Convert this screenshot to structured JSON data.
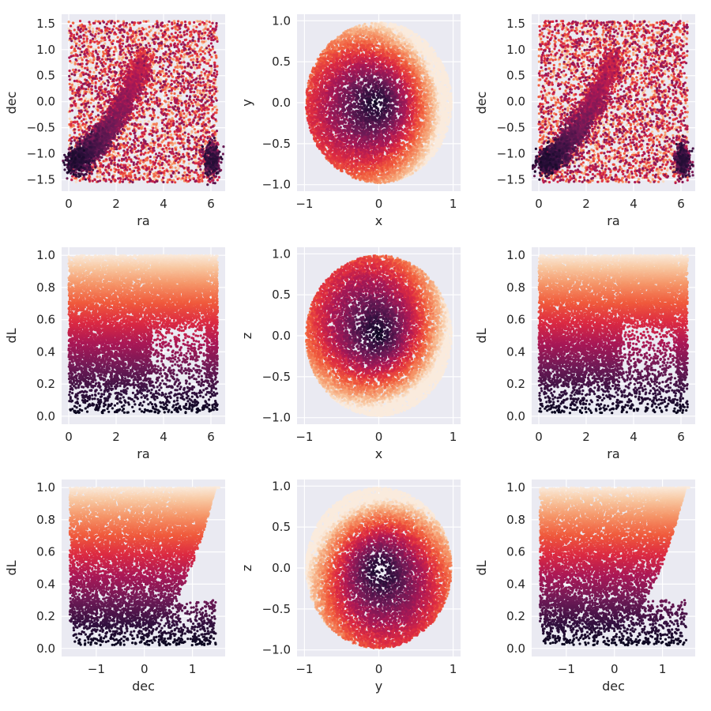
{
  "figure": {
    "grid": true,
    "facecolor": "#eaeaf2",
    "gridcolor": "#ffffff"
  },
  "chart_data": [
    {
      "id": "p00",
      "type": "scatter",
      "xlabel": "ra",
      "ylabel": "dec",
      "xlim": [
        -0.3,
        6.6
      ],
      "ylim": [
        -1.72,
        1.68
      ],
      "xticks": [
        "0",
        "2",
        "4",
        "6"
      ],
      "yticks": [
        "−1.5",
        "−1.0",
        "−0.5",
        "0.0",
        "0.5",
        "1.0",
        "1.5"
      ],
      "xtick_values": [
        0,
        2,
        4,
        6
      ],
      "ytick_values": [
        -1.5,
        -1.0,
        -0.5,
        0.0,
        0.5,
        1.0,
        1.5
      ],
      "style": "radec",
      "colormap": "rocket"
    },
    {
      "id": "p01",
      "type": "scatter",
      "xlabel": "x",
      "ylabel": "y",
      "xlim": [
        -1.1,
        1.1
      ],
      "ylim": [
        -1.08,
        1.08
      ],
      "xticks": [
        "−1",
        "0",
        "1"
      ],
      "yticks": [
        "−1.0",
        "−0.5",
        "0.0",
        "0.5",
        "1.0"
      ],
      "xtick_values": [
        -1,
        0,
        1
      ],
      "ytick_values": [
        -1.0,
        -0.5,
        0.0,
        0.5,
        1.0
      ],
      "style": "disk_xy",
      "colormap": "rocket"
    },
    {
      "id": "p02",
      "type": "scatter",
      "xlabel": "ra",
      "ylabel": "dec",
      "xlim": [
        -0.3,
        6.6
      ],
      "ylim": [
        -1.72,
        1.68
      ],
      "xticks": [
        "0",
        "2",
        "4",
        "6"
      ],
      "yticks": [
        "−1.5",
        "−1.0",
        "−0.5",
        "0.0",
        "0.5",
        "1.0",
        "1.5"
      ],
      "xtick_values": [
        0,
        2,
        4,
        6
      ],
      "ytick_values": [
        -1.5,
        -1.0,
        -0.5,
        0.0,
        0.5,
        1.0,
        1.5
      ],
      "style": "radec",
      "colormap": "rocket"
    },
    {
      "id": "p10",
      "type": "scatter",
      "xlabel": "ra",
      "ylabel": "dL",
      "xlim": [
        -0.3,
        6.6
      ],
      "ylim": [
        -0.05,
        1.05
      ],
      "xticks": [
        "0",
        "2",
        "4",
        "6"
      ],
      "yticks": [
        "0.0",
        "0.2",
        "0.4",
        "0.6",
        "0.8",
        "1.0"
      ],
      "xtick_values": [
        0,
        2,
        4,
        6
      ],
      "ytick_values": [
        0.0,
        0.2,
        0.4,
        0.6,
        0.8,
        1.0
      ],
      "style": "radl",
      "colormap": "rocket"
    },
    {
      "id": "p11",
      "type": "scatter",
      "xlabel": "x",
      "ylabel": "z",
      "xlim": [
        -1.1,
        1.1
      ],
      "ylim": [
        -1.08,
        1.08
      ],
      "xticks": [
        "−1",
        "0",
        "1"
      ],
      "yticks": [
        "−1.0",
        "−0.5",
        "0.0",
        "0.5",
        "1.0"
      ],
      "xtick_values": [
        -1,
        0,
        1
      ],
      "ytick_values": [
        -1.0,
        -0.5,
        0.0,
        0.5,
        1.0
      ],
      "style": "disk_xz",
      "colormap": "rocket"
    },
    {
      "id": "p12",
      "type": "scatter",
      "xlabel": "ra",
      "ylabel": "dL",
      "xlim": [
        -0.3,
        6.6
      ],
      "ylim": [
        -0.05,
        1.05
      ],
      "xticks": [
        "0",
        "2",
        "4",
        "6"
      ],
      "yticks": [
        "0.0",
        "0.2",
        "0.4",
        "0.6",
        "0.8",
        "1.0"
      ],
      "xtick_values": [
        0,
        2,
        4,
        6
      ],
      "ytick_values": [
        0.0,
        0.2,
        0.4,
        0.6,
        0.8,
        1.0
      ],
      "style": "radl",
      "colormap": "rocket"
    },
    {
      "id": "p20",
      "type": "scatter",
      "xlabel": "dec",
      "ylabel": "dL",
      "xlim": [
        -1.72,
        1.68
      ],
      "ylim": [
        -0.05,
        1.05
      ],
      "xticks": [
        "−1",
        "0",
        "1"
      ],
      "yticks": [
        "0.0",
        "0.2",
        "0.4",
        "0.6",
        "0.8",
        "1.0"
      ],
      "xtick_values": [
        -1,
        0,
        1
      ],
      "ytick_values": [
        0.0,
        0.2,
        0.4,
        0.6,
        0.8,
        1.0
      ],
      "style": "decdl",
      "colormap": "rocket"
    },
    {
      "id": "p21",
      "type": "scatter",
      "xlabel": "y",
      "ylabel": "z",
      "xlim": [
        -1.1,
        1.1
      ],
      "ylim": [
        -1.08,
        1.08
      ],
      "xticks": [
        "−1",
        "0",
        "1"
      ],
      "yticks": [
        "−1.0",
        "−0.5",
        "0.0",
        "0.5",
        "1.0"
      ],
      "xtick_values": [
        -1,
        0,
        1
      ],
      "ytick_values": [
        -1.0,
        -0.5,
        0.0,
        0.5,
        1.0
      ],
      "style": "disk_yz",
      "colormap": "rocket"
    },
    {
      "id": "p22",
      "type": "scatter",
      "xlabel": "dec",
      "ylabel": "dL",
      "xlim": [
        -1.72,
        1.68
      ],
      "ylim": [
        -0.05,
        1.05
      ],
      "xticks": [
        "−1",
        "0",
        "1"
      ],
      "yticks": [
        "0.0",
        "0.2",
        "0.4",
        "0.6",
        "0.8",
        "1.0"
      ],
      "xtick_values": [
        -1,
        0,
        1
      ],
      "ytick_values": [
        0.0,
        0.2,
        0.4,
        0.6,
        0.8,
        1.0
      ],
      "style": "decdl",
      "colormap": "rocket"
    }
  ]
}
